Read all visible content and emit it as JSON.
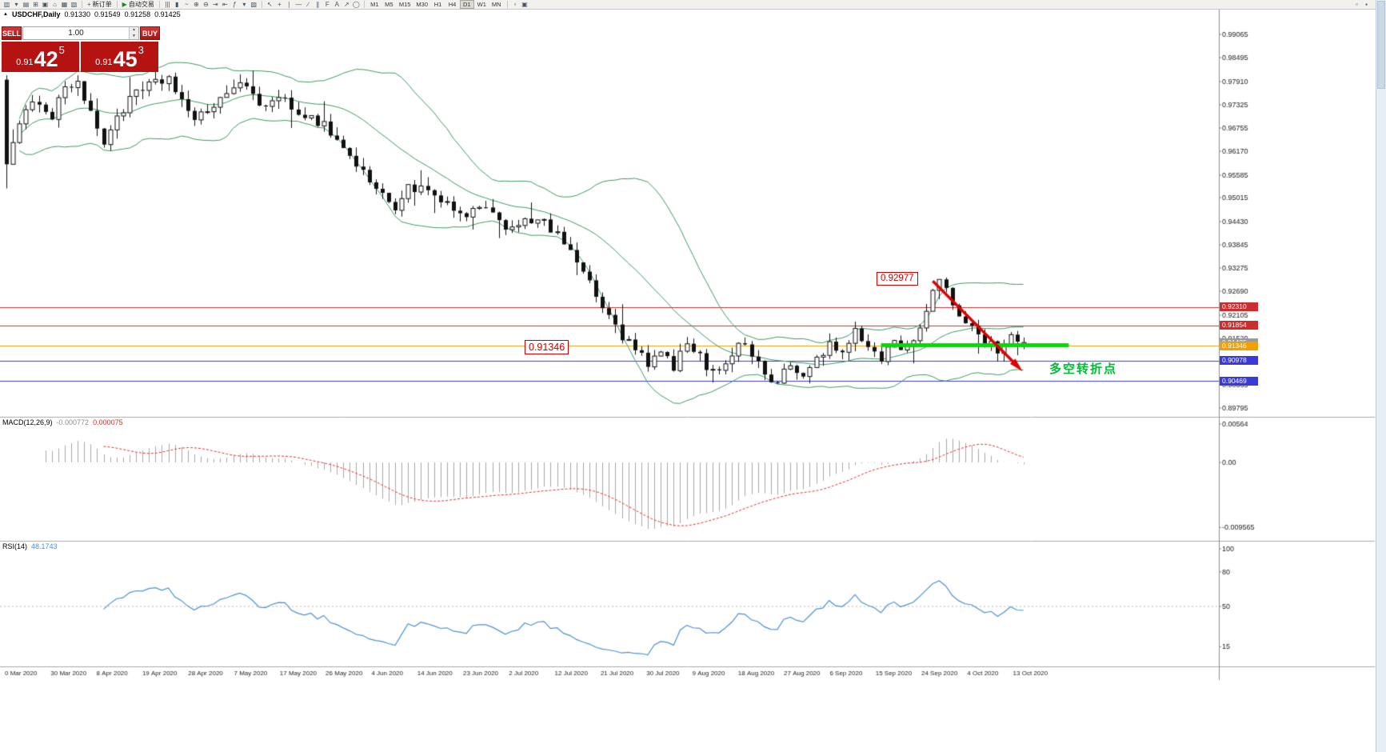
{
  "toolbar": {
    "file_icons": [
      {
        "name": "new-chart-icon",
        "glyph": "▥"
      },
      {
        "name": "chart-dropdown-icon",
        "glyph": "▾"
      },
      {
        "name": "profiles-icon",
        "glyph": "▤"
      },
      {
        "name": "market-watch-icon",
        "glyph": "⊞"
      },
      {
        "name": "data-window-icon",
        "glyph": "▣"
      },
      {
        "name": "navigator-icon",
        "glyph": "⌂"
      },
      {
        "name": "terminal-icon",
        "glyph": "▦"
      },
      {
        "name": "strategy-tester-icon",
        "glyph": "▧"
      }
    ],
    "new_order": {
      "label": "新订单",
      "icon_glyph": "+"
    },
    "autotrade": {
      "label": "自动交易",
      "icon_glyph": "▶"
    },
    "chart_icons": [
      {
        "name": "bar-chart-icon",
        "glyph": "|||"
      },
      {
        "name": "candle-chart-icon",
        "glyph": "▮"
      },
      {
        "name": "line-chart-icon",
        "glyph": "~"
      },
      {
        "name": "zoom-in-icon",
        "glyph": "⊕"
      },
      {
        "name": "zoom-out-icon",
        "glyph": "⊖"
      },
      {
        "name": "auto-scroll-icon",
        "glyph": "⇥"
      },
      {
        "name": "chart-shift-icon",
        "glyph": "⇤"
      },
      {
        "name": "indicators-icon",
        "glyph": "ƒ"
      },
      {
        "name": "periods-dropdown-icon",
        "glyph": "▾"
      },
      {
        "name": "templates-icon",
        "glyph": "▨"
      }
    ],
    "draw_icons": [
      {
        "name": "cursor-icon",
        "glyph": "↖"
      },
      {
        "name": "crosshair-icon",
        "glyph": "+"
      },
      {
        "name": "vertical-line-icon",
        "glyph": "∣"
      },
      {
        "name": "horizontal-line-icon",
        "glyph": "―"
      },
      {
        "name": "trendline-icon",
        "glyph": "∕"
      },
      {
        "name": "channel-icon",
        "glyph": "∥"
      },
      {
        "name": "fibonacci-icon",
        "glyph": "F"
      },
      {
        "name": "text-icon",
        "glyph": "A"
      },
      {
        "name": "arrow-object-icon",
        "glyph": "↗"
      },
      {
        "name": "shapes-icon",
        "glyph": "◯"
      }
    ],
    "timeframes": [
      "M1",
      "M5",
      "M15",
      "M30",
      "H1",
      "H4",
      "D1",
      "W1",
      "MN"
    ],
    "active_timeframe": "D1",
    "after_icons": [
      {
        "name": "window-tile-icon",
        "glyph": "▫"
      },
      {
        "name": "window-cascade-icon",
        "glyph": "▣"
      }
    ],
    "right_icons": [
      {
        "name": "docking-icon",
        "glyph": "▫"
      },
      {
        "name": "help-icon",
        "glyph": "▪"
      }
    ]
  },
  "quote_header": {
    "marker": "▲",
    "symbol_period": "USDCHF,Daily",
    "open": "0.91330",
    "high": "0.91549",
    "low": "0.91258",
    "close": "0.91425"
  },
  "trade_widget": {
    "sell_label": "SELL",
    "buy_label": "BUY",
    "volume": "1.00",
    "spinner_up": "▲",
    "spinner_down": "▼",
    "accent_color": "#B51212",
    "sell_price": {
      "prefix": "0.91",
      "big": "42",
      "sup": "5"
    },
    "buy_price": {
      "prefix": "0.91",
      "big": "45",
      "sup": "3"
    }
  },
  "annotations": {
    "peak_price": "0.92977",
    "support_price": "0.91346",
    "turning_point": "多空转折点"
  },
  "indicators": {
    "macd_label": "MACD(12,26,9)",
    "macd_value1": "-0.000772",
    "macd_value2": "0.000075",
    "rsi_label": "RSI(14)",
    "rsi_value": "48.1743"
  },
  "chart_data": {
    "type": "candlestick",
    "symbol": "USDCHF",
    "timeframe": "Daily",
    "current_ohlc": {
      "open": 0.9133,
      "high": 0.91549,
      "low": 0.91258,
      "close": 0.91425
    },
    "peak": {
      "index": 144,
      "high": 0.92977
    },
    "swing_low": {
      "index": 153,
      "low": 0.9095
    },
    "y_ticks": [
      0.99065,
      0.98495,
      0.9791,
      0.97325,
      0.96755,
      0.9617,
      0.95585,
      0.95015,
      0.9443,
      0.93845,
      0.93275,
      0.9269,
      0.92105,
      0.9152,
      0.9095,
      0.90365,
      0.89795
    ],
    "x_dates": [
      "0 Mar 2020",
      "30 Mar 2020",
      "8 Apr 2020",
      "19 Apr 2020",
      "28 Apr 2020",
      "7 May 2020",
      "17 May 2020",
      "26 May 2020",
      "4 Jun 2020",
      "14 Jun 2020",
      "23 Jun 2020",
      "2 Jul 2020",
      "12 Jul 2020",
      "21 Jul 2020",
      "30 Jul 2020",
      "9 Aug 2020",
      "18 Aug 2020",
      "27 Aug 2020",
      "6 Sep 2020",
      "15 Sep 2020",
      "24 Sep 2020",
      "4 Oct 2020",
      "13 Oct 2020"
    ],
    "price_path": [
      [
        1,
        0.965
      ],
      [
        3,
        0.971
      ],
      [
        5,
        0.9745
      ],
      [
        7,
        0.9705
      ],
      [
        9,
        0.978
      ],
      [
        11,
        0.979
      ],
      [
        13,
        0.9705
      ],
      [
        15,
        0.964
      ],
      [
        17,
        0.9705
      ],
      [
        20,
        0.976
      ],
      [
        23,
        0.9785
      ],
      [
        25,
        0.9799
      ],
      [
        27,
        0.9745
      ],
      [
        29,
        0.9685
      ],
      [
        31,
        0.972
      ],
      [
        34,
        0.9765
      ],
      [
        37,
        0.978
      ],
      [
        40,
        0.9725
      ],
      [
        43,
        0.9745
      ],
      [
        46,
        0.9705
      ],
      [
        49,
        0.9685
      ],
      [
        52,
        0.9625
      ],
      [
        55,
        0.9565
      ],
      [
        58,
        0.9505
      ],
      [
        60,
        0.948
      ],
      [
        62,
        0.953
      ],
      [
        65,
        0.9515
      ],
      [
        68,
        0.948
      ],
      [
        70,
        0.9455
      ],
      [
        73,
        0.9475
      ],
      [
        76,
        0.9445
      ],
      [
        78,
        0.9425
      ],
      [
        80,
        0.9455
      ],
      [
        83,
        0.9435
      ],
      [
        85,
        0.9405
      ],
      [
        87,
        0.938
      ],
      [
        89,
        0.9315
      ],
      [
        91,
        0.9255
      ],
      [
        93,
        0.9205
      ],
      [
        95,
        0.9155
      ],
      [
        97,
        0.9125
      ],
      [
        99,
        0.9085
      ],
      [
        101,
        0.9115
      ],
      [
        103,
        0.9085
      ],
      [
        105,
        0.9135
      ],
      [
        107,
        0.9105
      ],
      [
        109,
        0.9065
      ],
      [
        111,
        0.9095
      ],
      [
        113,
        0.9145
      ],
      [
        115,
        0.9115
      ],
      [
        117,
        0.9065
      ],
      [
        119,
        0.9045
      ],
      [
        121,
        0.9085
      ],
      [
        123,
        0.9055
      ],
      [
        125,
        0.9105
      ],
      [
        127,
        0.9135
      ],
      [
        129,
        0.9115
      ],
      [
        131,
        0.9165
      ],
      [
        133,
        0.9135
      ],
      [
        135,
        0.9105
      ],
      [
        137,
        0.9145
      ],
      [
        139,
        0.9125
      ],
      [
        141,
        0.9185
      ],
      [
        143,
        0.9265
      ],
      [
        144,
        0.9292
      ],
      [
        146,
        0.924
      ],
      [
        148,
        0.9195
      ],
      [
        150,
        0.9165
      ],
      [
        152,
        0.914
      ],
      [
        153,
        0.9122
      ],
      [
        155,
        0.9162
      ],
      [
        156,
        0.914
      ],
      [
        157,
        0.91425
      ]
    ],
    "levels": [
      {
        "price": 0.9231,
        "color": "#CC2E2E",
        "label": "0.92310",
        "line": true
      },
      {
        "price": 0.91854,
        "color": "#CC2E2E",
        "label": "0.91854",
        "line": true
      },
      {
        "price": 0.91425,
        "color": "#9A9A9A",
        "label": "0.91425",
        "line": false
      },
      {
        "price": 0.91346,
        "color": "#F0A000",
        "label": "0.91346",
        "line": true
      },
      {
        "price": 0.90978,
        "color": "#3A3AD8",
        "label": "0.90978",
        "line": true
      },
      {
        "price": 0.90469,
        "color": "#3A3AD8",
        "label": "0.90469",
        "line": true
      }
    ],
    "support_line": {
      "price": 0.9136,
      "x_start_index": 135,
      "x_end_index": 164,
      "color": "#00DD00"
    },
    "trend_arrow": {
      "from": [
        143,
        0.9295
      ],
      "to": [
        156,
        0.9085
      ],
      "color": "#E00000"
    },
    "bollinger": {
      "period": 20,
      "deviation": 2,
      "color": "#3C9A60"
    },
    "macd": {
      "params": "12,26,9",
      "histogram_color": "#A8A8A8",
      "signal_color": "#E03030",
      "axis": [
        {
          "t": "0.00564",
          "v": 0.00564
        },
        {
          "t": "0.00",
          "v": 0
        },
        {
          "t": "-0.009565",
          "v": -0.009565
        }
      ]
    },
    "rsi": {
      "period": 14,
      "value": 48.1743,
      "line_color": "#4A90D9",
      "axis": [
        {
          "t": "100",
          "v": 100
        },
        {
          "t": "80",
          "v": 80
        },
        {
          "t": "50",
          "v": 50
        },
        {
          "t": "15",
          "v": 15
        }
      ]
    }
  }
}
